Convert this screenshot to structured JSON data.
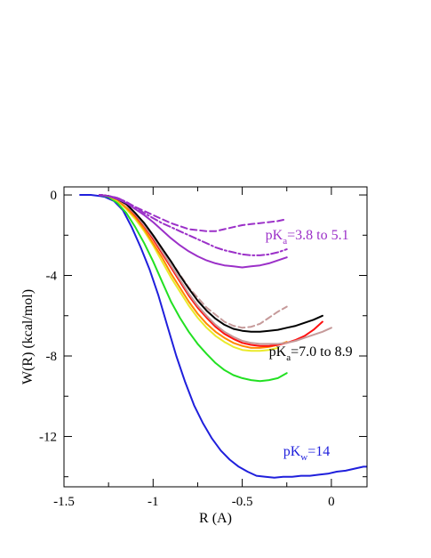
{
  "chart_data": {
    "type": "line",
    "xlabel": "R (A)",
    "ylabel": "W(R)  (kcal/mol)",
    "xlim": [
      -1.5,
      0.2
    ],
    "ylim": [
      -14.5,
      0.4
    ],
    "xticks": [
      -1.5,
      -1,
      -0.5,
      0
    ],
    "xtick_labels": [
      "-1.5",
      "-1",
      "-0.5",
      "0"
    ],
    "yticks": [
      0,
      -4,
      -8,
      -12
    ],
    "ytick_labels": [
      "0",
      "-4",
      "-8",
      "-12"
    ],
    "grid": false,
    "annotations": [
      {
        "prefix": "pK",
        "sub": "a",
        "rest": "=3.8 to 5.1",
        "x": -0.37,
        "y": -2.2,
        "color": "#9b30c8"
      },
      {
        "prefix": "pK",
        "sub": "a",
        "rest": "=7.0 to 8.9",
        "x": -0.35,
        "y": -8.0,
        "color": "#000000"
      },
      {
        "prefix": "pK",
        "sub": "w",
        "rest": "=14",
        "x": -0.27,
        "y": -12.95,
        "color": "#1f1fdc"
      }
    ],
    "series": [
      {
        "color": "#1f1fdc",
        "dash": "solid",
        "x": [
          -1.41,
          -1.35,
          -1.3,
          -1.27,
          -1.22,
          -1.17,
          -1.12,
          -1.07,
          -1.02,
          -0.97,
          -0.92,
          -0.87,
          -0.82,
          -0.77,
          -0.72,
          -0.67,
          -0.62,
          -0.57,
          -0.52,
          -0.47,
          -0.42,
          -0.37,
          -0.32,
          -0.27,
          -0.22,
          -0.17,
          -0.12,
          -0.07,
          -0.02,
          0.03,
          0.08,
          0.13,
          0.18,
          0.2
        ],
        "y": [
          0.0,
          0.0,
          -0.05,
          -0.1,
          -0.3,
          -0.75,
          -1.6,
          -2.6,
          -3.7,
          -5.0,
          -6.5,
          -8.0,
          -9.3,
          -10.45,
          -11.35,
          -12.1,
          -12.7,
          -13.15,
          -13.5,
          -13.75,
          -13.95,
          -14.0,
          -14.05,
          -14.0,
          -14.0,
          -13.95,
          -13.95,
          -13.9,
          -13.85,
          -13.75,
          -13.7,
          -13.6,
          -13.5,
          -13.5
        ]
      },
      {
        "color": "#22e022",
        "dash": "solid",
        "x": [
          -1.3,
          -1.25,
          -1.2,
          -1.15,
          -1.1,
          -1.05,
          -1.0,
          -0.95,
          -0.9,
          -0.85,
          -0.8,
          -0.75,
          -0.7,
          -0.65,
          -0.6,
          -0.55,
          -0.5,
          -0.45,
          -0.4,
          -0.35,
          -0.3,
          -0.25
        ],
        "y": [
          0.0,
          -0.1,
          -0.4,
          -0.9,
          -1.6,
          -2.4,
          -3.3,
          -4.3,
          -5.3,
          -6.1,
          -6.8,
          -7.4,
          -7.9,
          -8.35,
          -8.7,
          -8.95,
          -9.1,
          -9.2,
          -9.25,
          -9.2,
          -9.1,
          -8.85
        ]
      },
      {
        "color": "#eaea2a",
        "dash": "solid",
        "x": [
          -1.3,
          -1.25,
          -1.2,
          -1.15,
          -1.1,
          -1.05,
          -1.0,
          -0.95,
          -0.9,
          -0.85,
          -0.8,
          -0.75,
          -0.7,
          -0.65,
          -0.6,
          -0.55,
          -0.5,
          -0.45,
          -0.4,
          -0.35,
          -0.3
        ],
        "y": [
          0.0,
          -0.05,
          -0.3,
          -0.7,
          -1.2,
          -1.8,
          -2.5,
          -3.3,
          -4.1,
          -4.8,
          -5.5,
          -6.1,
          -6.6,
          -7.0,
          -7.3,
          -7.55,
          -7.7,
          -7.75,
          -7.75,
          -7.7,
          -7.6
        ]
      },
      {
        "color": "#ff8800",
        "dash": "solid",
        "x": [
          -1.3,
          -1.25,
          -1.2,
          -1.15,
          -1.1,
          -1.05,
          -1.0,
          -0.95,
          -0.9,
          -0.85,
          -0.8,
          -0.75,
          -0.7,
          -0.65,
          -0.6,
          -0.55,
          -0.5,
          -0.45,
          -0.4,
          -0.35,
          -0.3,
          -0.25
        ],
        "y": [
          0.0,
          -0.05,
          -0.25,
          -0.65,
          -1.1,
          -1.7,
          -2.4,
          -3.1,
          -3.9,
          -4.6,
          -5.3,
          -5.9,
          -6.4,
          -6.8,
          -7.1,
          -7.35,
          -7.5,
          -7.6,
          -7.6,
          -7.55,
          -7.45,
          -7.3
        ]
      },
      {
        "color": "#ff1010",
        "dash": "solid",
        "x": [
          -1.3,
          -1.25,
          -1.2,
          -1.15,
          -1.1,
          -1.05,
          -1.0,
          -0.95,
          -0.9,
          -0.85,
          -0.8,
          -0.75,
          -0.7,
          -0.65,
          -0.6,
          -0.55,
          -0.5,
          -0.45,
          -0.4,
          -0.35,
          -0.3,
          -0.25,
          -0.2,
          -0.15,
          -0.1,
          -0.05
        ],
        "y": [
          0.0,
          -0.05,
          -0.2,
          -0.5,
          -1.0,
          -1.55,
          -2.2,
          -2.9,
          -3.6,
          -4.3,
          -5.0,
          -5.6,
          -6.1,
          -6.55,
          -6.9,
          -7.15,
          -7.35,
          -7.45,
          -7.5,
          -7.5,
          -7.45,
          -7.35,
          -7.2,
          -7.0,
          -6.7,
          -6.3
        ]
      },
      {
        "color": "#c69a9a",
        "dash": "solid",
        "x": [
          -1.3,
          -1.25,
          -1.2,
          -1.15,
          -1.1,
          -1.05,
          -1.0,
          -0.95,
          -0.9,
          -0.85,
          -0.8,
          -0.75,
          -0.7,
          -0.65,
          -0.6,
          -0.55,
          -0.5,
          -0.45,
          -0.4,
          -0.35,
          -0.3,
          -0.25,
          -0.2,
          -0.15,
          -0.1,
          -0.05,
          0.0
        ],
        "y": [
          0.0,
          -0.05,
          -0.2,
          -0.5,
          -0.95,
          -1.5,
          -2.1,
          -2.8,
          -3.5,
          -4.2,
          -4.9,
          -5.5,
          -6.0,
          -6.45,
          -6.8,
          -7.05,
          -7.25,
          -7.35,
          -7.4,
          -7.4,
          -7.4,
          -7.35,
          -7.25,
          -7.1,
          -6.95,
          -6.8,
          -6.6
        ]
      },
      {
        "color": "#c69a9a",
        "dash": "dashed",
        "x": [
          -1.1,
          -1.0,
          -0.9,
          -0.8,
          -0.7,
          -0.6,
          -0.55,
          -0.5,
          -0.45,
          -0.4,
          -0.35,
          -0.3,
          -0.25
        ],
        "y": [
          -0.9,
          -2.0,
          -3.3,
          -4.6,
          -5.6,
          -6.3,
          -6.5,
          -6.6,
          -6.55,
          -6.4,
          -6.1,
          -5.8,
          -5.55
        ]
      },
      {
        "color": "#000000",
        "dash": "solid",
        "x": [
          -1.3,
          -1.25,
          -1.2,
          -1.15,
          -1.1,
          -1.05,
          -1.0,
          -0.95,
          -0.9,
          -0.85,
          -0.8,
          -0.75,
          -0.7,
          -0.65,
          -0.6,
          -0.55,
          -0.5,
          -0.45,
          -0.4,
          -0.35,
          -0.3,
          -0.25,
          -0.2,
          -0.15,
          -0.1,
          -0.05
        ],
        "y": [
          0.0,
          -0.05,
          -0.2,
          -0.45,
          -0.9,
          -1.4,
          -2.0,
          -2.65,
          -3.3,
          -4.0,
          -4.65,
          -5.25,
          -5.75,
          -6.15,
          -6.45,
          -6.65,
          -6.75,
          -6.8,
          -6.8,
          -6.75,
          -6.7,
          -6.6,
          -6.5,
          -6.35,
          -6.2,
          -6.0
        ]
      },
      {
        "color": "#9b30c8",
        "dash": "solid",
        "x": [
          -1.3,
          -1.25,
          -1.2,
          -1.15,
          -1.1,
          -1.05,
          -1.0,
          -0.95,
          -0.9,
          -0.85,
          -0.8,
          -0.75,
          -0.7,
          -0.65,
          -0.6,
          -0.55,
          -0.5,
          -0.45,
          -0.4,
          -0.35,
          -0.3,
          -0.25
        ],
        "y": [
          0.0,
          -0.05,
          -0.2,
          -0.4,
          -0.7,
          -1.0,
          -1.35,
          -1.75,
          -2.15,
          -2.5,
          -2.8,
          -3.05,
          -3.25,
          -3.4,
          -3.5,
          -3.55,
          -3.6,
          -3.55,
          -3.5,
          -3.4,
          -3.25,
          -3.1
        ]
      },
      {
        "color": "#9b30c8",
        "dash": "dashdot",
        "x": [
          -1.3,
          -1.25,
          -1.2,
          -1.15,
          -1.1,
          -1.05,
          -1.0,
          -0.95,
          -0.9,
          -0.85,
          -0.8,
          -0.75,
          -0.7,
          -0.65,
          -0.6,
          -0.55,
          -0.5,
          -0.45,
          -0.4,
          -0.35,
          -0.3,
          -0.25
        ],
        "y": [
          0.0,
          -0.05,
          -0.15,
          -0.35,
          -0.6,
          -0.9,
          -1.15,
          -1.4,
          -1.6,
          -1.8,
          -2.0,
          -2.2,
          -2.4,
          -2.6,
          -2.75,
          -2.85,
          -2.95,
          -3.0,
          -3.0,
          -2.95,
          -2.85,
          -2.7
        ]
      },
      {
        "color": "#9b30c8",
        "dash": "dashed",
        "x": [
          -1.3,
          -1.25,
          -1.2,
          -1.15,
          -1.1,
          -1.05,
          -1.0,
          -0.95,
          -0.9,
          -0.85,
          -0.8,
          -0.75,
          -0.7,
          -0.65,
          -0.6,
          -0.55,
          -0.5,
          -0.45,
          -0.4,
          -0.35,
          -0.3,
          -0.25
        ],
        "y": [
          0.0,
          -0.05,
          -0.15,
          -0.35,
          -0.6,
          -0.8,
          -1.0,
          -1.2,
          -1.4,
          -1.55,
          -1.7,
          -1.75,
          -1.8,
          -1.8,
          -1.7,
          -1.6,
          -1.5,
          -1.45,
          -1.4,
          -1.35,
          -1.3,
          -1.2
        ]
      }
    ]
  }
}
